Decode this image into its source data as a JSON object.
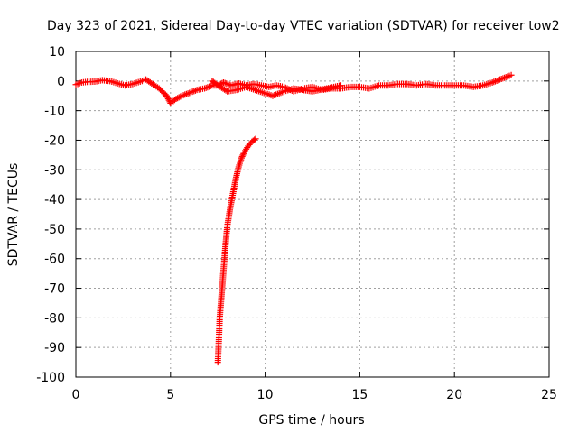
{
  "chart_data": {
    "type": "scatter",
    "title": "Day 323 of 2021, Sidereal Day-to-day VTEC variation (SDTVAR) for receiver tow2",
    "xlabel": "GPS time / hours",
    "ylabel": "SDTVAR / TECUs",
    "xlim": [
      0,
      25
    ],
    "ylim": [
      -100,
      10
    ],
    "xticks": [
      0,
      5,
      10,
      15,
      20,
      25
    ],
    "yticks": [
      10,
      0,
      -10,
      -20,
      -30,
      -40,
      -50,
      -60,
      -70,
      -80,
      -90,
      -100
    ],
    "grid": true,
    "marker": "+",
    "series": [
      {
        "name": "SDTVAR main trace",
        "color": "#ff0000",
        "points": [
          [
            0.0,
            -1.2
          ],
          [
            0.3,
            -0.5
          ],
          [
            0.6,
            -0.3
          ],
          [
            1.0,
            -0.2
          ],
          [
            1.4,
            0.3
          ],
          [
            1.8,
            0.0
          ],
          [
            2.2,
            -0.8
          ],
          [
            2.6,
            -1.5
          ],
          [
            3.0,
            -1.0
          ],
          [
            3.4,
            -0.2
          ],
          [
            3.7,
            0.5
          ],
          [
            4.0,
            -0.8
          ],
          [
            4.4,
            -2.5
          ],
          [
            4.8,
            -5.0
          ],
          [
            5.0,
            -7.5
          ],
          [
            5.3,
            -6.0
          ],
          [
            5.6,
            -5.0
          ],
          [
            6.0,
            -4.0
          ],
          [
            6.4,
            -3.0
          ],
          [
            6.8,
            -2.5
          ],
          [
            7.2,
            -1.5
          ],
          [
            7.5,
            -1.5
          ],
          [
            7.8,
            -0.5
          ],
          [
            8.2,
            -1.5
          ],
          [
            8.6,
            -0.8
          ],
          [
            9.0,
            -1.5
          ],
          [
            9.4,
            -1.0
          ],
          [
            9.8,
            -1.5
          ],
          [
            10.2,
            -2.0
          ],
          [
            10.6,
            -1.5
          ],
          [
            11.0,
            -2.0
          ],
          [
            11.5,
            -3.5
          ],
          [
            12.0,
            -2.5
          ],
          [
            12.5,
            -2.0
          ],
          [
            13.0,
            -3.0
          ],
          [
            13.5,
            -2.5
          ],
          [
            14.0,
            -2.5
          ],
          [
            14.5,
            -2.0
          ],
          [
            15.0,
            -2.0
          ],
          [
            15.5,
            -2.5
          ],
          [
            16.0,
            -1.5
          ],
          [
            16.5,
            -1.5
          ],
          [
            17.0,
            -1.0
          ],
          [
            17.5,
            -1.0
          ],
          [
            18.0,
            -1.5
          ],
          [
            18.5,
            -1.0
          ],
          [
            19.0,
            -1.5
          ],
          [
            19.5,
            -1.5
          ],
          [
            20.0,
            -1.5
          ],
          [
            20.5,
            -1.5
          ],
          [
            21.0,
            -2.0
          ],
          [
            21.5,
            -1.5
          ],
          [
            22.0,
            -0.5
          ],
          [
            22.4,
            0.5
          ],
          [
            22.8,
            1.5
          ],
          [
            23.0,
            2.0
          ]
        ]
      },
      {
        "name": "SDTVAR secondary trace",
        "color": "#ff0000",
        "points": [
          [
            7.2,
            0.0
          ],
          [
            7.4,
            -1.0
          ],
          [
            8.0,
            -3.5
          ],
          [
            8.5,
            -3.0
          ],
          [
            9.0,
            -2.0
          ],
          [
            10.4,
            -5.0
          ],
          [
            11.0,
            -3.5
          ],
          [
            11.5,
            -2.5
          ],
          [
            12.5,
            -3.5
          ],
          [
            14.0,
            -1.5
          ]
        ]
      },
      {
        "name": "SDTVAR dropout arc",
        "color": "#ff0000",
        "points": [
          [
            7.5,
            -95
          ],
          [
            7.55,
            -88
          ],
          [
            7.6,
            -80
          ],
          [
            7.7,
            -72
          ],
          [
            7.8,
            -64
          ],
          [
            7.9,
            -56
          ],
          [
            8.0,
            -49
          ],
          [
            8.15,
            -43
          ],
          [
            8.3,
            -38
          ],
          [
            8.45,
            -33
          ],
          [
            8.6,
            -29
          ],
          [
            8.75,
            -26
          ],
          [
            8.9,
            -24
          ],
          [
            9.1,
            -22
          ],
          [
            9.3,
            -20.5
          ],
          [
            9.5,
            -19.5
          ]
        ]
      }
    ]
  }
}
